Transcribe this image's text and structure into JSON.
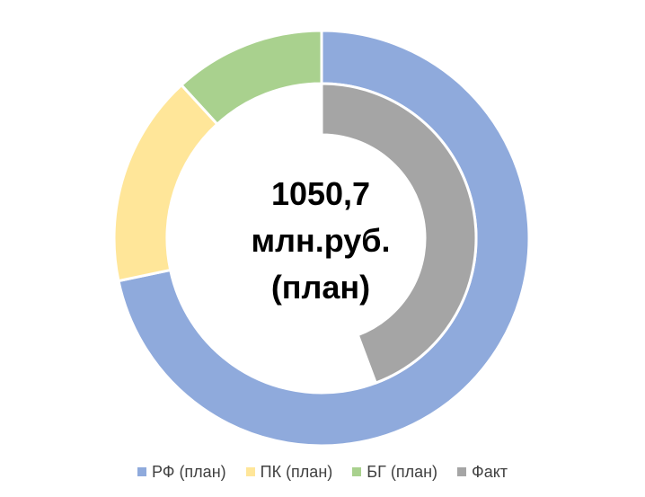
{
  "chart_data": {
    "type": "donut",
    "center_label": [
      "1050,7",
      "млн.руб.",
      "(план)"
    ],
    "outer_ring": {
      "slices": [
        {
          "label": "РФ (план)",
          "value": 71.7,
          "color": "#8faadc"
        },
        {
          "label": "ПК (план)",
          "value": 16.5,
          "color": "#ffe699"
        },
        {
          "label": "БГ (план)",
          "value": 11.8,
          "color": "#a9d18e"
        }
      ]
    },
    "inner_ring": {
      "slices": [
        {
          "label": "Факт",
          "value": 44.3,
          "color": "#a5a5a5"
        }
      ]
    },
    "legend": [
      {
        "label": "РФ (план)",
        "color": "#8faadc"
      },
      {
        "label": "ПК (план)",
        "color": "#ffe699"
      },
      {
        "label": "БГ (план)",
        "color": "#a9d18e"
      },
      {
        "label": "Факт",
        "color": "#a5a5a5"
      }
    ],
    "legend_position": "bottom"
  }
}
